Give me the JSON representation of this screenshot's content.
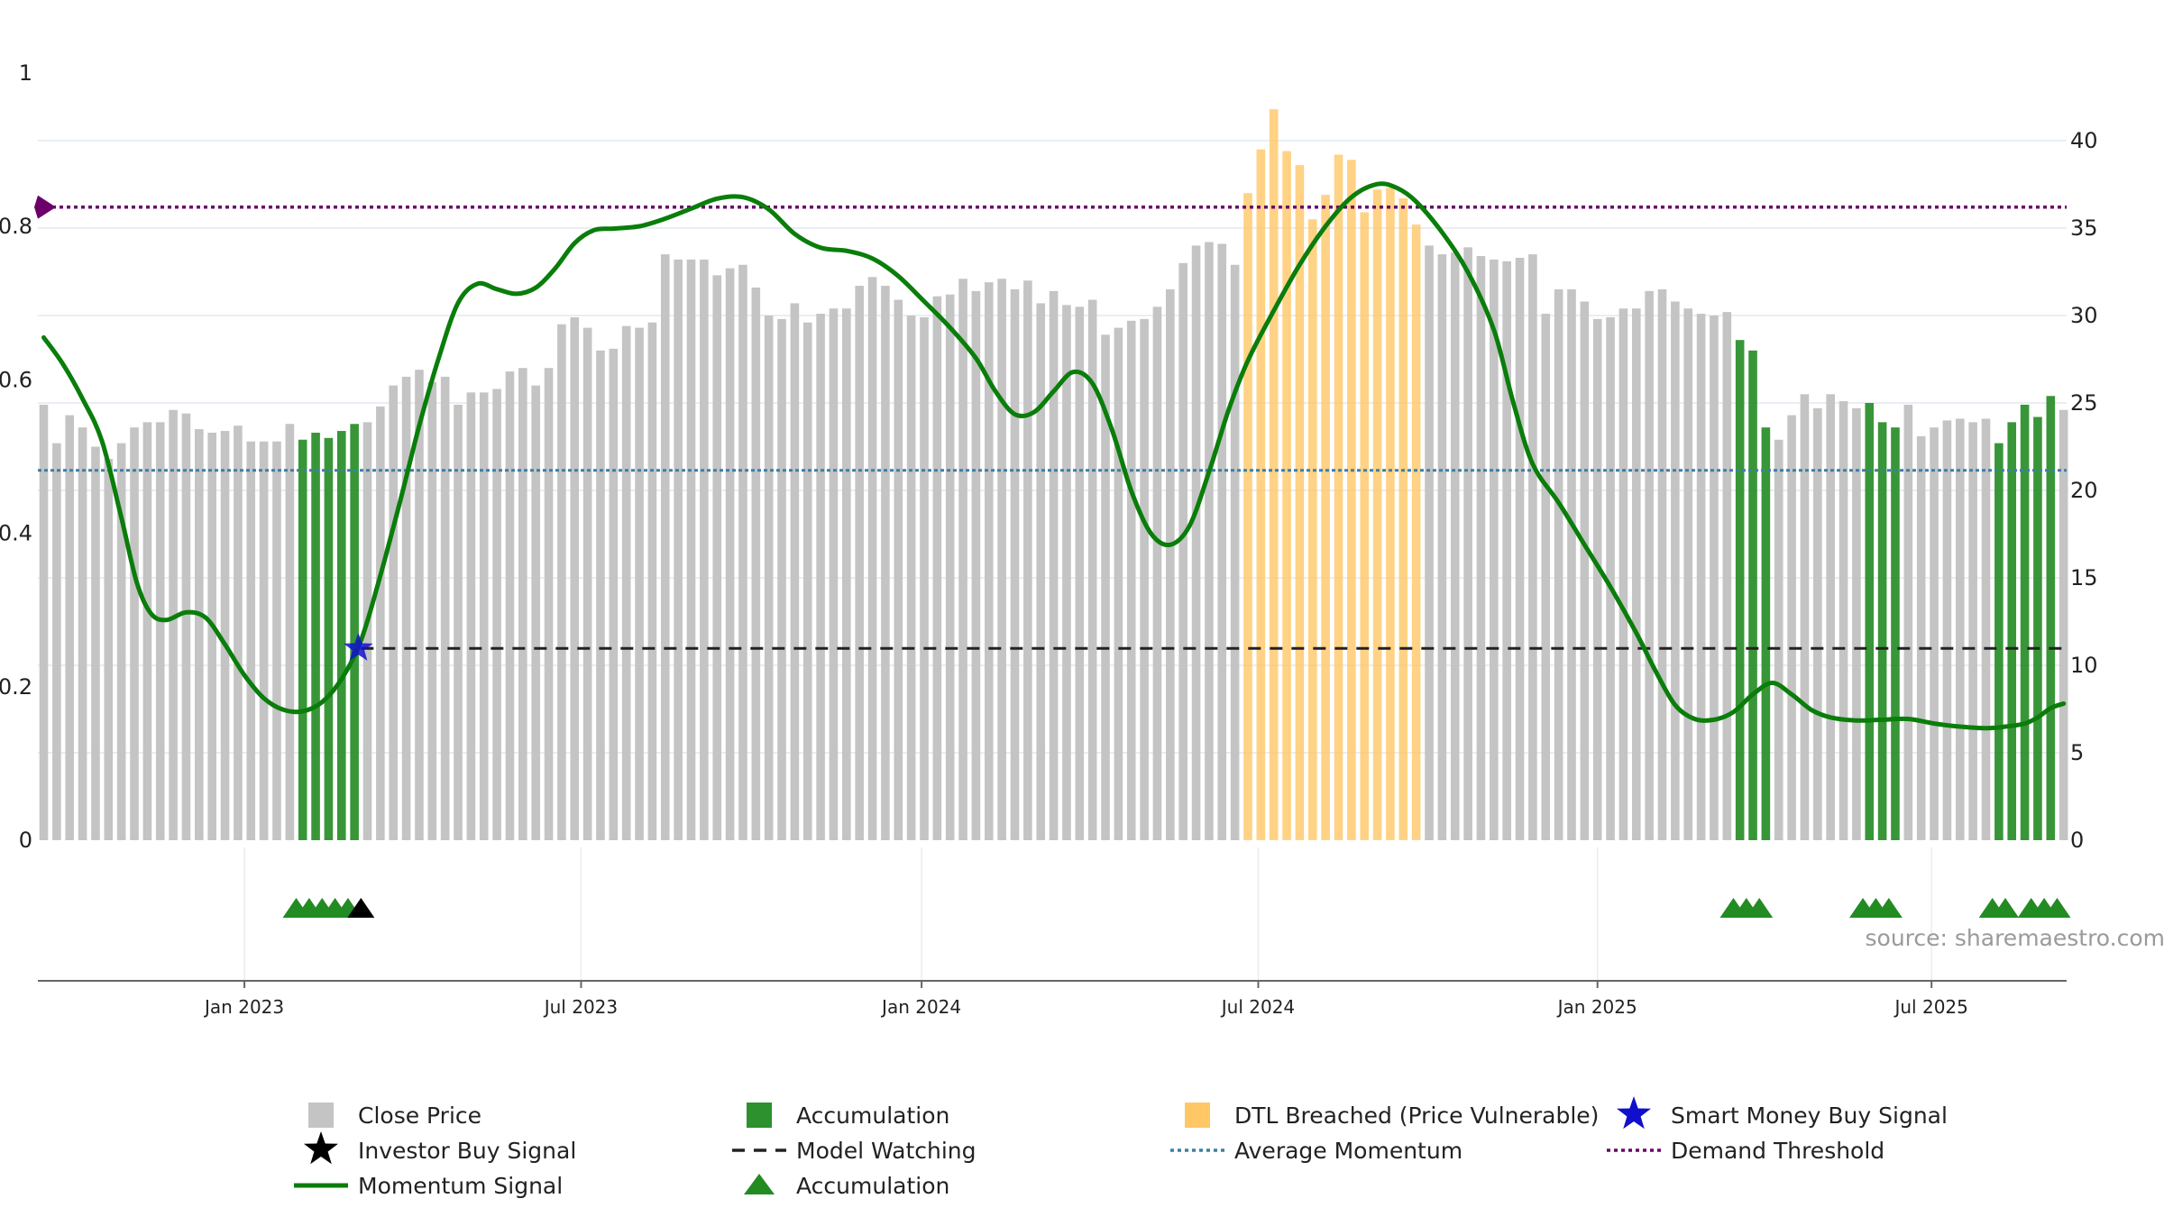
{
  "chart_data": {
    "type": "bar",
    "colors": {
      "close": "#c4c4c4",
      "accumulation": "#228b22",
      "dtl": "#ffc766",
      "momentum": "#0a7d0a",
      "average": "#3d7fa6",
      "demand": "#6b006b",
      "model": "#222222",
      "smart_money": "#1010cc",
      "investor": "#000000"
    },
    "left_axis": {
      "range": [
        0,
        1
      ],
      "ticks": [
        "0",
        "0.2",
        "0.4",
        "0.6",
        "0.8",
        "1"
      ],
      "tick_values": [
        0,
        0.2,
        0.4,
        0.6,
        0.8,
        1
      ]
    },
    "right_axis": {
      "range": [
        0,
        44
      ],
      "ticks": [
        "0",
        "5",
        "10",
        "15",
        "20",
        "25",
        "30",
        "35",
        "40"
      ],
      "tick_values": [
        0,
        5,
        10,
        15,
        20,
        25,
        30,
        35,
        40
      ]
    },
    "x_axis": {
      "tick_labels": [
        "Jan 2023",
        "Jul 2023",
        "Jan 2024",
        "Jul 2024",
        "Jan 2025",
        "Jul 2025"
      ],
      "tick_weeks": [
        15.5,
        41.5,
        67.8,
        93.8,
        120.0,
        145.8
      ]
    },
    "close_price": [
      24.9,
      22.7,
      24.3,
      23.6,
      22.5,
      21.8,
      22.7,
      23.6,
      23.9,
      23.9,
      24.6,
      24.4,
      23.5,
      23.3,
      23.4,
      23.7,
      22.8,
      22.8,
      22.8,
      23.8,
      22.9,
      23.3,
      23.0,
      23.4,
      23.8,
      23.9,
      24.8,
      26.0,
      26.5,
      26.9,
      26.2,
      26.5,
      24.9,
      25.6,
      25.6,
      25.8,
      26.8,
      27.0,
      26.0,
      27.0,
      29.5,
      29.9,
      29.3,
      28.0,
      28.1,
      29.4,
      29.3,
      29.6,
      33.5,
      33.2,
      33.2,
      33.2,
      32.3,
      32.7,
      32.9,
      31.6,
      30.0,
      29.8,
      30.7,
      29.6,
      30.1,
      30.4,
      30.4,
      31.7,
      32.2,
      31.7,
      30.9,
      30.0,
      29.9,
      31.1,
      31.2,
      32.1,
      31.4,
      31.9,
      32.1,
      31.5,
      32.0,
      30.7,
      31.4,
      30.6,
      30.5,
      30.9,
      28.9,
      29.3,
      29.7,
      29.8,
      30.5,
      31.5,
      33.0,
      34.0,
      34.2,
      34.1,
      32.9,
      37.0,
      39.5,
      41.8,
      39.4,
      38.6,
      35.5,
      36.9,
      39.2,
      38.9,
      35.9,
      37.2,
      37.3,
      36.7,
      35.2,
      34.0,
      33.5,
      33.6,
      33.9,
      33.4,
      33.2,
      33.1,
      33.3,
      33.5,
      30.1,
      31.5,
      31.5,
      30.8,
      29.8,
      29.9,
      30.4,
      30.4,
      31.4,
      31.5,
      30.8,
      30.4,
      30.1,
      30.0,
      30.2,
      28.6,
      28.0,
      23.6,
      22.9,
      24.3,
      25.5,
      24.7,
      25.5,
      25.1,
      24.7,
      25.0,
      23.9,
      23.6,
      24.9,
      23.1,
      23.6,
      24.0,
      24.1,
      23.9,
      24.1,
      22.7,
      23.9,
      24.9,
      24.2,
      25.4,
      24.6
    ],
    "accumulation_weeks": [
      20,
      21,
      22,
      23,
      24,
      131,
      132,
      133,
      141,
      142,
      143,
      151,
      152,
      153,
      154,
      155
    ],
    "dtl_weeks": [
      93,
      94,
      95,
      96,
      97,
      98,
      99,
      100,
      101,
      102,
      103,
      104,
      105,
      106
    ],
    "momentum": [
      {
        "w": 0,
        "v": 0.655
      },
      {
        "w": 1.5,
        "v": 0.62
      },
      {
        "w": 3,
        "v": 0.575
      },
      {
        "w": 4.5,
        "v": 0.52
      },
      {
        "w": 6,
        "v": 0.42
      },
      {
        "w": 7.2,
        "v": 0.335
      },
      {
        "w": 8.3,
        "v": 0.295
      },
      {
        "w": 9.5,
        "v": 0.287
      },
      {
        "w": 11,
        "v": 0.297
      },
      {
        "w": 12.5,
        "v": 0.29
      },
      {
        "w": 14,
        "v": 0.255
      },
      {
        "w": 15.5,
        "v": 0.215
      },
      {
        "w": 17,
        "v": 0.185
      },
      {
        "w": 18.5,
        "v": 0.17
      },
      {
        "w": 20,
        "v": 0.168
      },
      {
        "w": 21.5,
        "v": 0.18
      },
      {
        "w": 23,
        "v": 0.21
      },
      {
        "w": 24.5,
        "v": 0.26
      },
      {
        "w": 26,
        "v": 0.345
      },
      {
        "w": 27.5,
        "v": 0.44
      },
      {
        "w": 29,
        "v": 0.54
      },
      {
        "w": 30.5,
        "v": 0.628
      },
      {
        "w": 32,
        "v": 0.7
      },
      {
        "w": 33.5,
        "v": 0.725
      },
      {
        "w": 35,
        "v": 0.718
      },
      {
        "w": 36.5,
        "v": 0.712
      },
      {
        "w": 38,
        "v": 0.72
      },
      {
        "w": 39.5,
        "v": 0.745
      },
      {
        "w": 41,
        "v": 0.778
      },
      {
        "w": 42.5,
        "v": 0.795
      },
      {
        "w": 44,
        "v": 0.797
      },
      {
        "w": 46,
        "v": 0.8
      },
      {
        "w": 48,
        "v": 0.81
      },
      {
        "w": 50,
        "v": 0.823
      },
      {
        "w": 52,
        "v": 0.836
      },
      {
        "w": 54,
        "v": 0.838
      },
      {
        "w": 56,
        "v": 0.822
      },
      {
        "w": 58,
        "v": 0.79
      },
      {
        "w": 60,
        "v": 0.772
      },
      {
        "w": 62,
        "v": 0.768
      },
      {
        "w": 64,
        "v": 0.758
      },
      {
        "w": 66,
        "v": 0.735
      },
      {
        "w": 68,
        "v": 0.702
      },
      {
        "w": 70,
        "v": 0.668
      },
      {
        "w": 72,
        "v": 0.628
      },
      {
        "w": 73.5,
        "v": 0.585
      },
      {
        "w": 75,
        "v": 0.555
      },
      {
        "w": 76.5,
        "v": 0.558
      },
      {
        "w": 78,
        "v": 0.585
      },
      {
        "w": 79.5,
        "v": 0.61
      },
      {
        "w": 81,
        "v": 0.595
      },
      {
        "w": 82.5,
        "v": 0.535
      },
      {
        "w": 84,
        "v": 0.455
      },
      {
        "w": 85.5,
        "v": 0.4
      },
      {
        "w": 87,
        "v": 0.385
      },
      {
        "w": 88.5,
        "v": 0.41
      },
      {
        "w": 90,
        "v": 0.48
      },
      {
        "w": 91.5,
        "v": 0.56
      },
      {
        "w": 93,
        "v": 0.625
      },
      {
        "w": 95,
        "v": 0.69
      },
      {
        "w": 97,
        "v": 0.75
      },
      {
        "w": 99,
        "v": 0.8
      },
      {
        "w": 101,
        "v": 0.838
      },
      {
        "w": 103,
        "v": 0.855
      },
      {
        "w": 104.5,
        "v": 0.85
      },
      {
        "w": 106,
        "v": 0.832
      },
      {
        "w": 108,
        "v": 0.792
      },
      {
        "w": 110,
        "v": 0.74
      },
      {
        "w": 112,
        "v": 0.665
      },
      {
        "w": 113.5,
        "v": 0.57
      },
      {
        "w": 115,
        "v": 0.49
      },
      {
        "w": 117,
        "v": 0.44
      },
      {
        "w": 119,
        "v": 0.385
      },
      {
        "w": 121,
        "v": 0.33
      },
      {
        "w": 123,
        "v": 0.27
      },
      {
        "w": 124.5,
        "v": 0.22
      },
      {
        "w": 126,
        "v": 0.176
      },
      {
        "w": 127.5,
        "v": 0.158
      },
      {
        "w": 129,
        "v": 0.157
      },
      {
        "w": 130.5,
        "v": 0.167
      },
      {
        "w": 132,
        "v": 0.19
      },
      {
        "w": 133.5,
        "v": 0.205
      },
      {
        "w": 135,
        "v": 0.19
      },
      {
        "w": 136.5,
        "v": 0.17
      },
      {
        "w": 138,
        "v": 0.16
      },
      {
        "w": 140,
        "v": 0.156
      },
      {
        "w": 142,
        "v": 0.157
      },
      {
        "w": 144,
        "v": 0.158
      },
      {
        "w": 146,
        "v": 0.152
      },
      {
        "w": 148,
        "v": 0.148
      },
      {
        "w": 150,
        "v": 0.146
      },
      {
        "w": 151.5,
        "v": 0.148
      },
      {
        "w": 153,
        "v": 0.152
      },
      {
        "w": 154,
        "v": 0.16
      },
      {
        "w": 155,
        "v": 0.172
      },
      {
        "w": 156,
        "v": 0.178
      }
    ],
    "average_momentum": 0.482,
    "demand_threshold": 0.825,
    "model_watching": {
      "value": 0.25,
      "start_week": 24.5,
      "end_week": 156
    },
    "smart_money_buy": [
      {
        "week": 24.3,
        "value": 0.25
      }
    ],
    "investor_buy_week": 24.5,
    "accumulation_triangle_weeks": [
      19.5,
      20.5,
      21.5,
      22.5,
      23.5,
      130.5,
      131.5,
      132.5,
      140.5,
      141.5,
      142.5,
      150.5,
      151.5,
      153.5,
      154.5,
      155.5
    ],
    "watermark": "source: sharemaestro.com",
    "legend": [
      {
        "label": "Close Price",
        "marker": "square",
        "color_key": "close"
      },
      {
        "label": "Accumulation",
        "marker": "square",
        "color_key": "accumulation"
      },
      {
        "label": "DTL Breached (Price Vulnerable)",
        "marker": "square",
        "color_key": "dtl"
      },
      {
        "label": "Smart Money Buy Signal",
        "marker": "star",
        "color_key": "smart_money"
      },
      {
        "label": "Investor Buy Signal",
        "marker": "star",
        "color_key": "investor"
      },
      {
        "label": "Model Watching",
        "marker": "dash",
        "color_key": "model"
      },
      {
        "label": "Average Momentum",
        "marker": "dot",
        "color_key": "average"
      },
      {
        "label": "Demand Threshold",
        "marker": "dot",
        "color_key": "demand"
      },
      {
        "label": "Momentum Signal",
        "marker": "line",
        "color_key": "momentum"
      },
      {
        "label": "Accumulation",
        "marker": "triangle",
        "color_key": "accumulation"
      }
    ]
  }
}
